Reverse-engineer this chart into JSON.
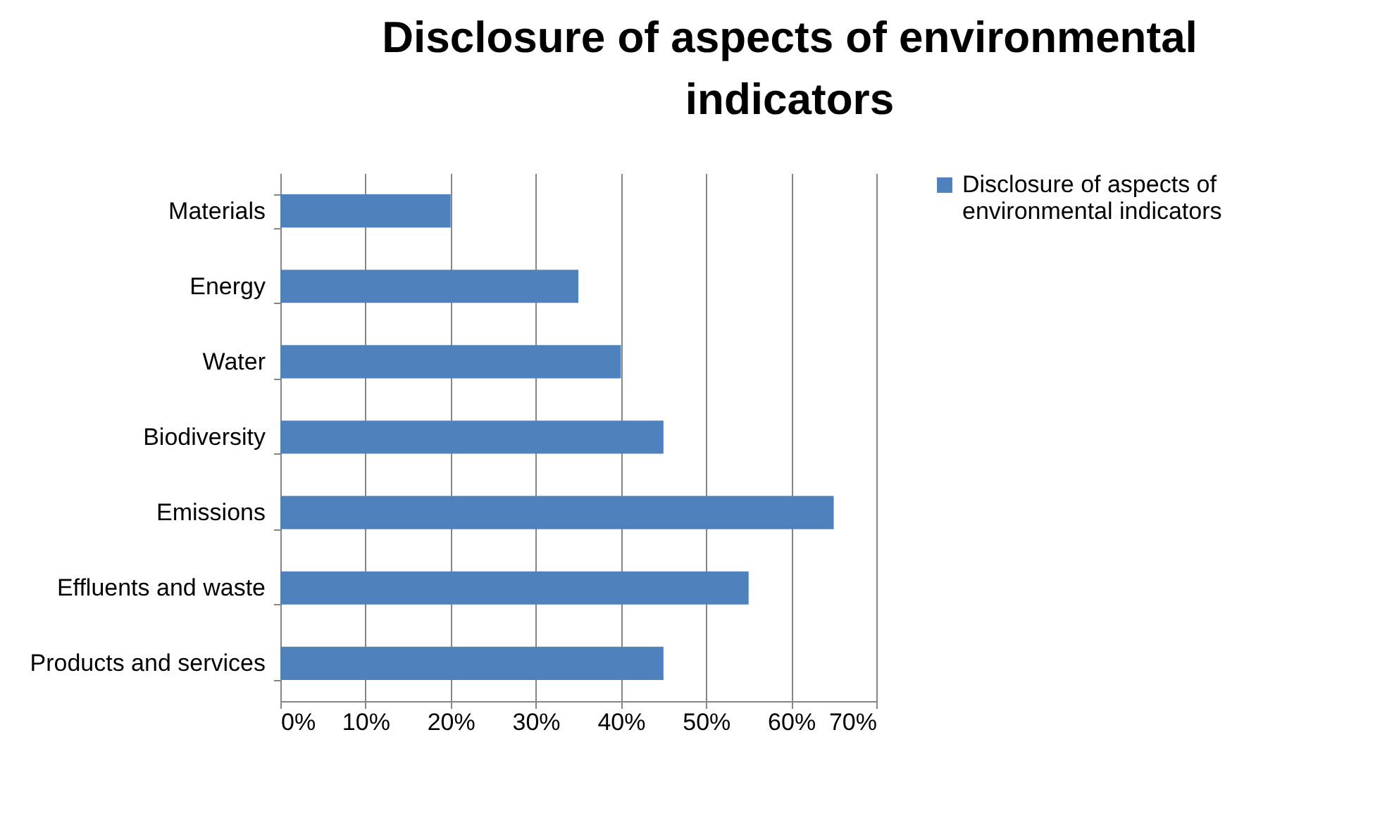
{
  "chart_data": {
    "type": "bar",
    "orientation": "horizontal",
    "title": "Disclosure of aspects of environmental indicators",
    "categories": [
      "Materials",
      "Energy",
      "Water",
      "Biodiversity",
      "Emissions",
      "Effluents and waste",
      "Products and services"
    ],
    "series": [
      {
        "name": "Disclosure of aspects of environmental indicators",
        "color": "#4f81bd",
        "values": [
          20,
          35,
          40,
          45,
          65,
          55,
          45
        ]
      }
    ],
    "xlim": [
      0,
      70
    ],
    "xticks": [
      {
        "value": 0,
        "label": "0%"
      },
      {
        "value": 10,
        "label": "10%"
      },
      {
        "value": 20,
        "label": "20%"
      },
      {
        "value": 30,
        "label": "30%"
      },
      {
        "value": 40,
        "label": "40%"
      },
      {
        "value": 50,
        "label": "50%"
      },
      {
        "value": 60,
        "label": "60%"
      },
      {
        "value": 70,
        "label": "70%"
      }
    ],
    "grid": "x",
    "legend": "right"
  }
}
